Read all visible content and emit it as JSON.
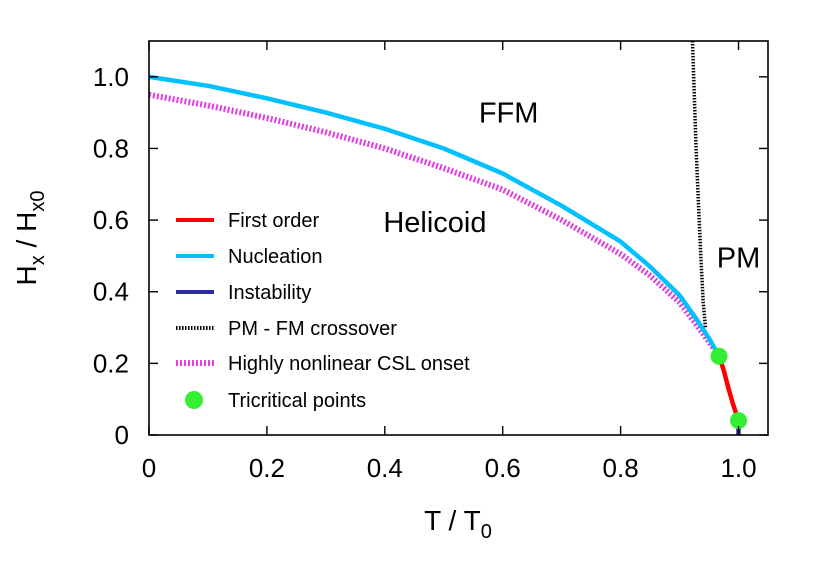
{
  "chart_data": {
    "type": "line",
    "xlabel": {
      "main": "T / T",
      "sub": "0"
    },
    "ylabel": {
      "part1": "H",
      "sub1": "x",
      "part2": " / H",
      "sub2": "x0"
    },
    "xlim": [
      0,
      1.05
    ],
    "ylim": [
      0,
      1.1
    ],
    "xticks": [
      {
        "value": 0,
        "label": "0"
      },
      {
        "value": 0.2,
        "label": "0.2"
      },
      {
        "value": 0.4,
        "label": "0.4"
      },
      {
        "value": 0.6,
        "label": "0.6"
      },
      {
        "value": 0.8,
        "label": "0.8"
      },
      {
        "value": 1.0,
        "label": "1.0"
      }
    ],
    "yticks": [
      {
        "value": 0,
        "label": "0"
      },
      {
        "value": 0.2,
        "label": "0.2"
      },
      {
        "value": 0.4,
        "label": "0.4"
      },
      {
        "value": 0.6,
        "label": "0.6"
      },
      {
        "value": 0.8,
        "label": "0.8"
      },
      {
        "value": 1.0,
        "label": "1.0"
      }
    ],
    "grid": false,
    "legend_position": "left",
    "regions": [
      {
        "label": "FFM",
        "x": 0.61,
        "y": 0.9
      },
      {
        "label": "Helicoid",
        "x": 0.485,
        "y": 0.595
      },
      {
        "label": "PM",
        "x": 1.0,
        "y": 0.495
      }
    ],
    "series": [
      {
        "name": "First order",
        "color": "#ff0000",
        "style": "solid",
        "x": [
          0.967,
          0.975,
          0.983,
          0.99,
          0.996,
          1.0
        ],
        "y": [
          0.22,
          0.18,
          0.13,
          0.09,
          0.06,
          0.04
        ]
      },
      {
        "name": "Nucleation",
        "color": "#00c0ff",
        "style": "solid",
        "x": [
          0,
          0.1,
          0.2,
          0.3,
          0.4,
          0.5,
          0.6,
          0.7,
          0.8,
          0.85,
          0.9,
          0.93,
          0.95,
          0.967
        ],
        "y": [
          1.0,
          0.975,
          0.94,
          0.9,
          0.855,
          0.8,
          0.73,
          0.64,
          0.54,
          0.47,
          0.39,
          0.32,
          0.27,
          0.22
        ]
      },
      {
        "name": "Instability",
        "color": "#2b2b9e",
        "style": "solid",
        "x": [
          1.0,
          1.0
        ],
        "y": [
          0.04,
          0.0
        ]
      },
      {
        "name": "PM - FM crossover",
        "color": "#000000",
        "style": "dotted",
        "x": [
          0.922,
          0.925,
          0.928,
          0.932,
          0.936,
          0.94,
          0.944
        ],
        "y": [
          1.1,
          0.95,
          0.8,
          0.65,
          0.5,
          0.37,
          0.3
        ]
      },
      {
        "name": "Highly nonlinear CSL onset",
        "color": "#e040e0",
        "style": "hatched",
        "x": [
          0,
          0.1,
          0.2,
          0.3,
          0.4,
          0.5,
          0.6,
          0.7,
          0.8,
          0.85,
          0.9,
          0.93,
          0.95,
          0.967
        ],
        "y": [
          0.95,
          0.92,
          0.885,
          0.845,
          0.8,
          0.745,
          0.685,
          0.6,
          0.505,
          0.445,
          0.37,
          0.305,
          0.26,
          0.22
        ]
      }
    ],
    "points": {
      "name": "Tricritical points",
      "color": "#33ee33",
      "x": [
        0.967,
        1.0
      ],
      "y": [
        0.22,
        0.04
      ]
    }
  }
}
